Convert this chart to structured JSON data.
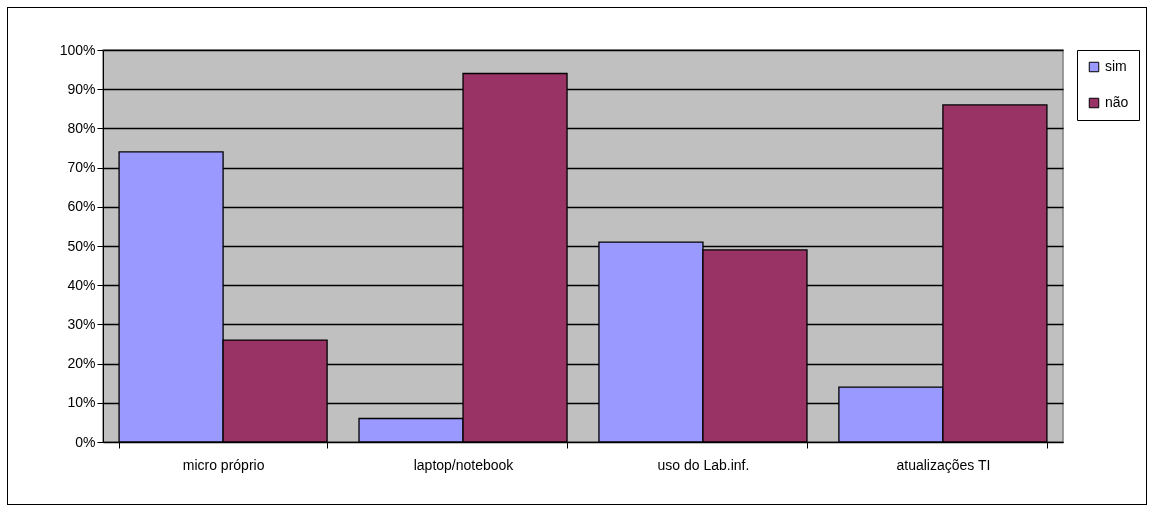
{
  "chart_data": {
    "type": "bar",
    "categories": [
      "micro próprio",
      "laptop/notebook",
      "uso do Lab.inf.",
      "atualizações TI"
    ],
    "series": [
      {
        "name": "sim",
        "color": "#9999ff",
        "values": [
          74,
          6,
          51,
          14
        ]
      },
      {
        "name": "não",
        "color": "#993366",
        "values": [
          26,
          94,
          49,
          86
        ]
      }
    ],
    "ylim": [
      0,
      100
    ],
    "yticks": [
      {
        "value": 0,
        "label": "0%"
      },
      {
        "value": 10,
        "label": "10%"
      },
      {
        "value": 20,
        "label": "20%"
      },
      {
        "value": 30,
        "label": "30%"
      },
      {
        "value": 40,
        "label": "40%"
      },
      {
        "value": 50,
        "label": "50%"
      },
      {
        "value": 60,
        "label": "60%"
      },
      {
        "value": 70,
        "label": "70%"
      },
      {
        "value": 80,
        "label": "80%"
      },
      {
        "value": 90,
        "label": "90%"
      },
      {
        "value": 100,
        "label": "100%"
      }
    ],
    "grid": "y",
    "legend": "right"
  }
}
